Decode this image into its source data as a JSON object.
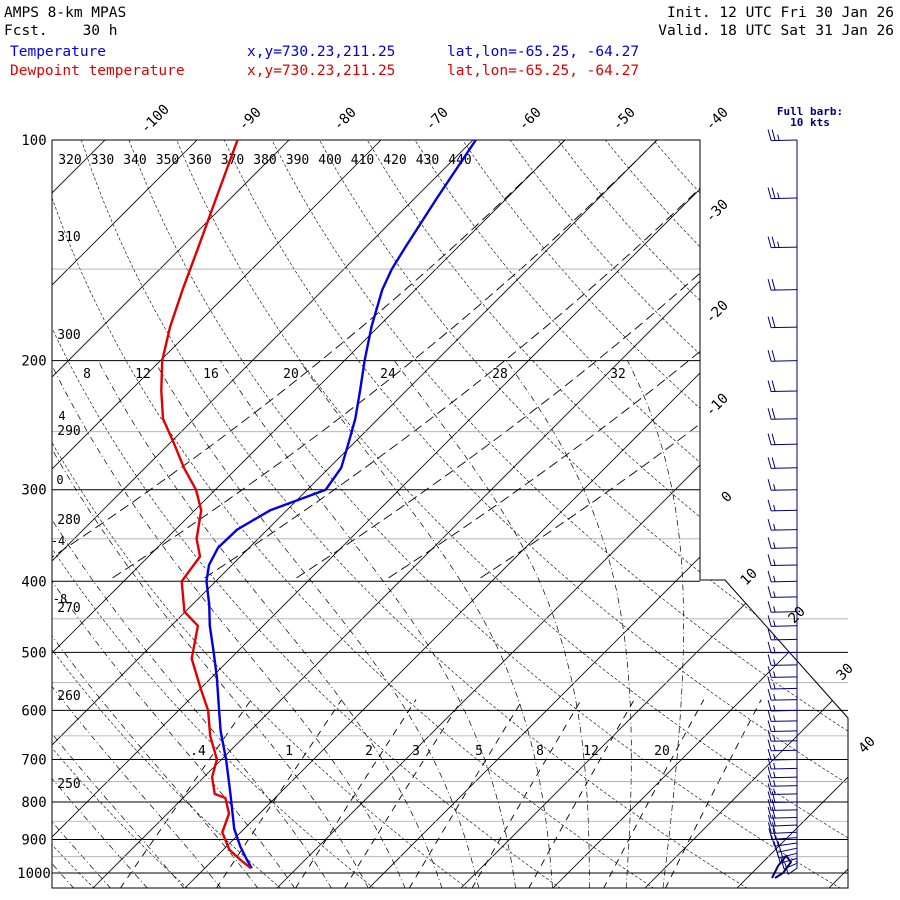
{
  "header": {
    "model_title": "AMPS 8-km MPAS",
    "fcst_label": "Fcst.",
    "fcst_value": "30 h",
    "init_label": "Init.",
    "init_value": "12 UTC Fri 30 Jan 26",
    "valid_label": "Valid.",
    "valid_value": "18 UTC Sat 31 Jan 26"
  },
  "legend": [
    {
      "name": "Temperature",
      "xy": "x,y=730.23,211.25",
      "latlon": "lat,lon=-65.25, -64.27",
      "color": "#0000e0"
    },
    {
      "name": "Dewpoint temperature",
      "xy": "x,y=730.23,211.25",
      "latlon": "lat,lon=-65.25, -64.27",
      "color": "#e00000"
    }
  ],
  "barb_legend": {
    "line1": "Full barb:",
    "line2": "10 kts",
    "color": "#00007a"
  },
  "chart_data": {
    "type": "line",
    "subtype": "skew-T log-p",
    "y_axis": {
      "quantity": "pressure",
      "unit": "hPa",
      "scale": "log",
      "range": [
        1000,
        100
      ],
      "tick_labels": [
        100,
        200,
        300,
        400,
        500,
        600,
        700,
        800,
        900,
        1000
      ]
    },
    "x_axis": {
      "quantity": "temperature",
      "unit": "°C",
      "skewed": true,
      "tick_labels": [
        -100,
        -90,
        -80,
        -70,
        -60,
        -50,
        -40,
        -30,
        -20,
        -10,
        0,
        10,
        20,
        30,
        40
      ]
    },
    "isotherm_labels": [
      -100,
      -90,
      -80,
      -70,
      -60,
      -50,
      -40,
      -30,
      -20,
      -10,
      0,
      10,
      20,
      30,
      40
    ],
    "theta_labels_top": [
      320,
      330,
      340,
      350,
      360,
      370,
      380,
      390,
      400,
      410,
      420,
      430,
      440
    ],
    "theta_labels_left": [
      310,
      300,
      290,
      280,
      270,
      260,
      250
    ],
    "theta_e_labels": [
      8,
      12,
      16,
      20,
      24,
      28,
      32
    ],
    "mixing_ratio_labels": [
      ".4",
      "1",
      "2",
      "3",
      "5",
      "8",
      "12",
      "20"
    ],
    "left_small_labels": [
      "4",
      "0",
      "-4",
      "-8"
    ],
    "series": [
      {
        "name": "Temperature",
        "color": "#0000e0",
        "p": [
          985,
          960,
          920,
          870,
          830,
          790,
          760,
          700,
          640,
          600,
          540,
          500,
          460,
          430,
          400,
          380,
          360,
          340,
          320,
          300,
          280,
          260,
          240,
          220,
          200,
          180,
          160,
          150,
          140,
          120,
          100
        ],
        "t": [
          -14.9,
          -16.3,
          -18.5,
          -21.1,
          -22.9,
          -24.8,
          -26.3,
          -29.5,
          -33.2,
          -35.6,
          -39.5,
          -42.5,
          -45.8,
          -48.2,
          -51.0,
          -52.5,
          -53.4,
          -53.3,
          -51.8,
          -48.0,
          -48.7,
          -50.5,
          -52.5,
          -55.0,
          -57.8,
          -60.7,
          -63.6,
          -64.8,
          -65.7,
          -67.6,
          -69.7
        ]
      },
      {
        "name": "Dewpoint temperature",
        "color": "#e00000",
        "p": [
          985,
          960,
          930,
          880,
          830,
          790,
          780,
          740,
          700,
          650,
          600,
          560,
          510,
          460,
          440,
          400,
          370,
          350,
          320,
          300,
          280,
          260,
          240,
          220,
          200,
          180,
          160,
          140,
          120,
          100
        ],
        "t": [
          -15.0,
          -17.0,
          -19.3,
          -22.0,
          -23.3,
          -25.4,
          -27.0,
          -29.1,
          -30.5,
          -33.8,
          -36.8,
          -40.0,
          -44.2,
          -47.1,
          -50.1,
          -53.7,
          -54.4,
          -56.7,
          -59.3,
          -62.1,
          -65.8,
          -69.4,
          -73.4,
          -76.6,
          -79.8,
          -82.6,
          -85.3,
          -88.2,
          -91.6,
          -95.6
        ]
      }
    ],
    "wind_barbs": {
      "color": "#00007a",
      "unit": "kts",
      "full_barb": 10,
      "levels": [
        {
          "p": 985,
          "speed": 10,
          "dir": 200
        },
        {
          "p": 970,
          "speed": 10,
          "dir": 210
        },
        {
          "p": 955,
          "speed": 15,
          "dir": 220
        },
        {
          "p": 940,
          "speed": 15,
          "dir": 225
        },
        {
          "p": 925,
          "speed": 20,
          "dir": 230
        },
        {
          "p": 910,
          "speed": 20,
          "dir": 240
        },
        {
          "p": 895,
          "speed": 20,
          "dir": 255
        },
        {
          "p": 880,
          "speed": 20,
          "dir": 260
        },
        {
          "p": 860,
          "speed": 20,
          "dir": 260
        },
        {
          "p": 840,
          "speed": 20,
          "dir": 265
        },
        {
          "p": 820,
          "speed": 20,
          "dir": 265
        },
        {
          "p": 800,
          "speed": 20,
          "dir": 265
        },
        {
          "p": 780,
          "speed": 15,
          "dir": 265
        },
        {
          "p": 760,
          "speed": 15,
          "dir": 265
        },
        {
          "p": 740,
          "speed": 15,
          "dir": 265
        },
        {
          "p": 720,
          "speed": 15,
          "dir": 265
        },
        {
          "p": 700,
          "speed": 15,
          "dir": 265
        },
        {
          "p": 680,
          "speed": 15,
          "dir": 265
        },
        {
          "p": 660,
          "speed": 15,
          "dir": 265
        },
        {
          "p": 640,
          "speed": 15,
          "dir": 265
        },
        {
          "p": 620,
          "speed": 15,
          "dir": 265
        },
        {
          "p": 600,
          "speed": 15,
          "dir": 265
        },
        {
          "p": 580,
          "speed": 15,
          "dir": 265
        },
        {
          "p": 560,
          "speed": 15,
          "dir": 265
        },
        {
          "p": 540,
          "speed": 15,
          "dir": 265
        },
        {
          "p": 520,
          "speed": 15,
          "dir": 265
        },
        {
          "p": 500,
          "speed": 15,
          "dir": 265
        },
        {
          "p": 480,
          "speed": 15,
          "dir": 265
        },
        {
          "p": 460,
          "speed": 15,
          "dir": 265
        },
        {
          "p": 440,
          "speed": 15,
          "dir": 265
        },
        {
          "p": 420,
          "speed": 15,
          "dir": 265
        },
        {
          "p": 400,
          "speed": 15,
          "dir": 265
        },
        {
          "p": 380,
          "speed": 15,
          "dir": 265
        },
        {
          "p": 360,
          "speed": 15,
          "dir": 265
        },
        {
          "p": 340,
          "speed": 15,
          "dir": 265
        },
        {
          "p": 320,
          "speed": 15,
          "dir": 265
        },
        {
          "p": 300,
          "speed": 15,
          "dir": 265
        },
        {
          "p": 280,
          "speed": 20,
          "dir": 265
        },
        {
          "p": 260,
          "speed": 20,
          "dir": 265
        },
        {
          "p": 240,
          "speed": 20,
          "dir": 265
        },
        {
          "p": 220,
          "speed": 20,
          "dir": 265
        },
        {
          "p": 200,
          "speed": 20,
          "dir": 265
        },
        {
          "p": 180,
          "speed": 20,
          "dir": 265
        },
        {
          "p": 160,
          "speed": 20,
          "dir": 265
        },
        {
          "p": 140,
          "speed": 25,
          "dir": 265
        },
        {
          "p": 120,
          "speed": 25,
          "dir": 265
        },
        {
          "p": 100,
          "speed": 25,
          "dir": 265
        }
      ]
    }
  }
}
